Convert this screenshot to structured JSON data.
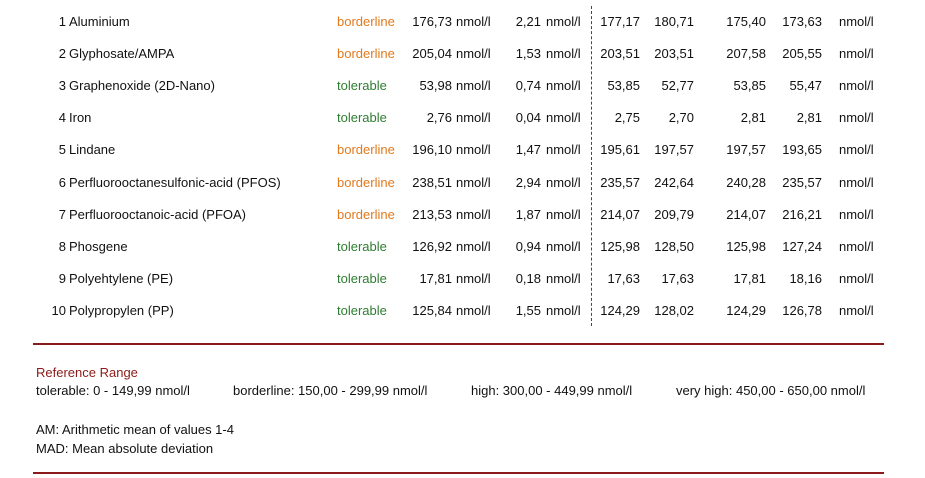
{
  "colors": {
    "borderline": "#e07a1f",
    "tolerable": "#2e7d32",
    "accent": "#8b1a1a"
  },
  "rows": [
    {
      "index": "1",
      "name": "Aluminium",
      "status": "borderline",
      "am": "176,73",
      "am_unit": "nmol/l",
      "mad": "2,21",
      "mad_unit": "nmol/l",
      "v1": "177,17",
      "v2": "180,71",
      "v3": "175,40",
      "v4": "173,63",
      "unit": "nmol/l"
    },
    {
      "index": "2",
      "name": "Glyphosate/AMPA",
      "status": "borderline",
      "am": "205,04",
      "am_unit": "nmol/l",
      "mad": "1,53",
      "mad_unit": "nmol/l",
      "v1": "203,51",
      "v2": "203,51",
      "v3": "207,58",
      "v4": "205,55",
      "unit": "nmol/l"
    },
    {
      "index": "3",
      "name": "Graphenoxide (2D-Nano)",
      "status": "tolerable",
      "am": "53,98",
      "am_unit": "nmol/l",
      "mad": "0,74",
      "mad_unit": "nmol/l",
      "v1": "53,85",
      "v2": "52,77",
      "v3": "53,85",
      "v4": "55,47",
      "unit": "nmol/l"
    },
    {
      "index": "4",
      "name": "Iron",
      "status": "tolerable",
      "am": "2,76",
      "am_unit": "nmol/l",
      "mad": "0,04",
      "mad_unit": "nmol/l",
      "v1": "2,75",
      "v2": "2,70",
      "v3": "2,81",
      "v4": "2,81",
      "unit": "nmol/l"
    },
    {
      "index": "5",
      "name": "Lindane",
      "status": "borderline",
      "am": "196,10",
      "am_unit": "nmol/l",
      "mad": "1,47",
      "mad_unit": "nmol/l",
      "v1": "195,61",
      "v2": "197,57",
      "v3": "197,57",
      "v4": "193,65",
      "unit": "nmol/l"
    },
    {
      "index": "6",
      "name": "Perfluorooctanesulfonic-acid (PFOS)",
      "status": "borderline",
      "am": "238,51",
      "am_unit": "nmol/l",
      "mad": "2,94",
      "mad_unit": "nmol/l",
      "v1": "235,57",
      "v2": "242,64",
      "v3": "240,28",
      "v4": "235,57",
      "unit": "nmol/l"
    },
    {
      "index": "7",
      "name": "Perfluorooctanoic-acid (PFOA)",
      "status": "borderline",
      "am": "213,53",
      "am_unit": "nmol/l",
      "mad": "1,87",
      "mad_unit": "nmol/l",
      "v1": "214,07",
      "v2": "209,79",
      "v3": "214,07",
      "v4": "216,21",
      "unit": "nmol/l"
    },
    {
      "index": "8",
      "name": "Phosgene",
      "status": "tolerable",
      "am": "126,92",
      "am_unit": "nmol/l",
      "mad": "0,94",
      "mad_unit": "nmol/l",
      "v1": "125,98",
      "v2": "128,50",
      "v3": "125,98",
      "v4": "127,24",
      "unit": "nmol/l"
    },
    {
      "index": "9",
      "name": "Polyehtylene (PE)",
      "status": "tolerable",
      "am": "17,81",
      "am_unit": "nmol/l",
      "mad": "0,18",
      "mad_unit": "nmol/l",
      "v1": "17,63",
      "v2": "17,63",
      "v3": "17,81",
      "v4": "18,16",
      "unit": "nmol/l"
    },
    {
      "index": "10",
      "name": "Polypropylen (PP)",
      "status": "tolerable",
      "am": "125,84",
      "am_unit": "nmol/l",
      "mad": "1,55",
      "mad_unit": "nmol/l",
      "v1": "124,29",
      "v2": "128,02",
      "v3": "124,29",
      "v4": "126,78",
      "unit": "nmol/l"
    }
  ],
  "reference": {
    "title": "Reference Range",
    "tolerable": "tolerable: 0 - 149,99 nmol/l",
    "borderline": "borderline: 150,00 - 299,99 nmol/l",
    "high": "high: 300,00 - 449,99 nmol/l",
    "very_high": "very high: 450,00 - 650,00 nmol/l"
  },
  "notes": {
    "am": "AM: Arithmetic mean of values 1-4",
    "mad": "MAD: Mean absolute deviation"
  }
}
